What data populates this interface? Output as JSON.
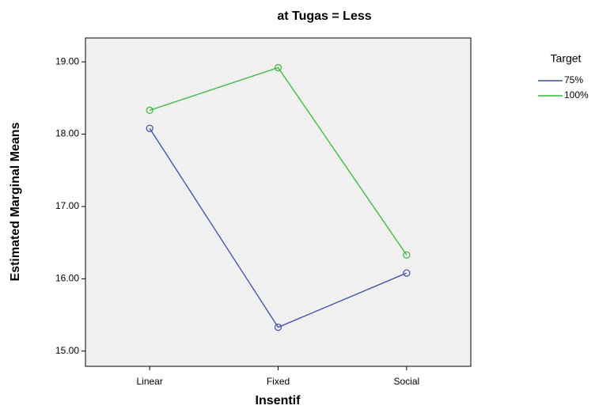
{
  "chart_data": {
    "type": "line",
    "title": "at Tugas = Less",
    "x_label": "Insentif",
    "y_label": "Estimated Marginal Means",
    "categories": [
      "Linear",
      "Fixed",
      "Social"
    ],
    "series": [
      {
        "name": "75%",
        "color": "#3a4ea3",
        "values": [
          18.08,
          15.33,
          16.08
        ]
      },
      {
        "name": "100%",
        "color": "#35b83a",
        "values": [
          18.33,
          18.92,
          16.33
        ]
      }
    ],
    "legend_title": "Target",
    "legend": "right",
    "ylim": [
      14.79,
      19.33
    ],
    "yticks": [
      {
        "value": 15,
        "label": "15.00"
      },
      {
        "value": 16,
        "label": "16.00"
      },
      {
        "value": 17,
        "label": "17.00"
      },
      {
        "value": 18,
        "label": "18.00"
      },
      {
        "value": 19,
        "label": "19.00"
      }
    ]
  }
}
